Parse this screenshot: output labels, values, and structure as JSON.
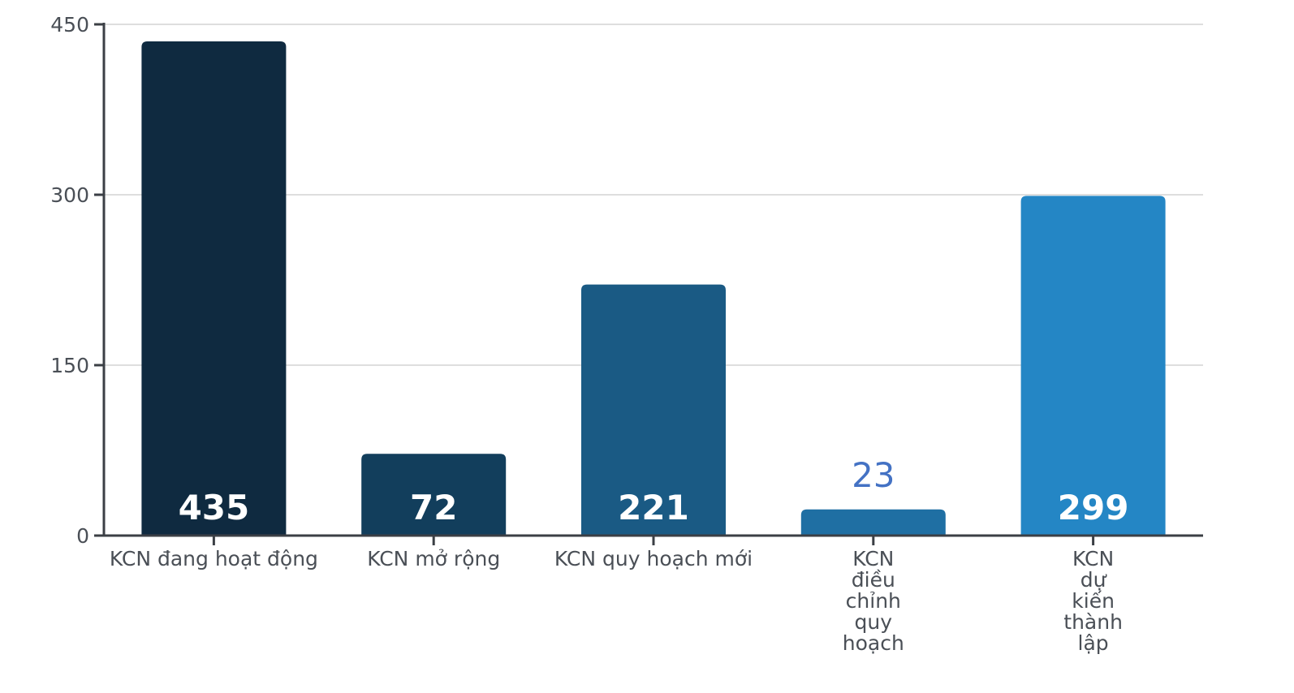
{
  "chart_data": {
    "type": "bar",
    "title": "",
    "xlabel": "",
    "ylabel": "",
    "categories": [
      "KCN đang hoạt động",
      "KCN mở rộng",
      "KCN quy hoạch mới",
      "KCN điều chỉnh quy hoạch",
      "KCN dự kiến thành lập"
    ],
    "category_lines": [
      [
        "KCN đang hoạt động"
      ],
      [
        "KCN mở rộng"
      ],
      [
        "KCN quy hoạch mới"
      ],
      [
        "KCN",
        "điều",
        "chỉnh",
        "quy",
        "hoạch"
      ],
      [
        "KCN",
        "dự",
        "kiến",
        "thành",
        "lập"
      ]
    ],
    "values": [
      435,
      72,
      221,
      23,
      299
    ],
    "data_labels": [
      "435",
      "72",
      "221",
      "23",
      "299"
    ],
    "ylim": [
      0,
      450
    ],
    "yticks": [
      0,
      150,
      300,
      450
    ],
    "grid": true,
    "legend": "none",
    "colors": [
      "#0f2a40",
      "#123e5c",
      "#1a5a84",
      "#1f6fa3",
      "#2486c5"
    ],
    "label_position": [
      "inside-bottom",
      "inside-bottom",
      "inside-bottom",
      "above",
      "inside-bottom"
    ]
  }
}
